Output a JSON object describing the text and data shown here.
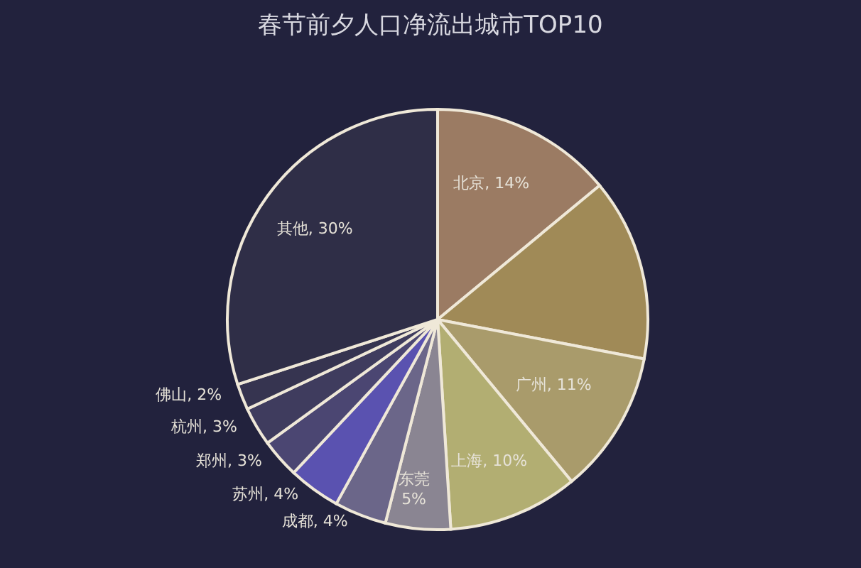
{
  "chart_data": {
    "type": "pie",
    "title": "春节前夕人口净流出城市TOP10",
    "categories": [
      "北京",
      null,
      "广州",
      "上海",
      "东莞",
      "成都",
      "苏州",
      "郑州",
      "杭州",
      "佛山",
      "其他"
    ],
    "values": [
      14,
      14,
      11,
      10,
      5,
      4,
      4,
      3,
      3,
      2,
      30
    ],
    "value_labels": [
      "14%",
      null,
      "11%",
      "10%",
      "5%",
      "4%",
      "4%",
      "3%",
      "3%",
      "2%",
      "30%"
    ],
    "colors": [
      "#9b7b63",
      "#a08a57",
      "#a99b6b",
      "#b2ae72",
      "#8a8592",
      "#6b6689",
      "#5a52b0",
      "#4b4672",
      "#3f3c5e",
      "#363450",
      "#2f2e47"
    ],
    "legend": false
  }
}
